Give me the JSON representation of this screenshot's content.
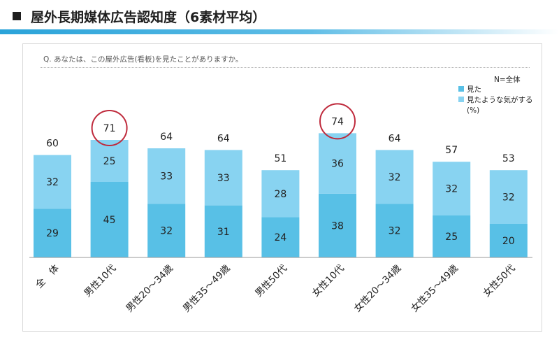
{
  "title": "屋外長期媒体広告認知度（6素材平均）",
  "question": "Q.  あなたは、この屋外広告(看板)を見たことがありますか。",
  "colors": {
    "saw": "#58c0e6",
    "felt_saw": "#88d3f1",
    "highlight_circle": "#bf2a3c",
    "baseline": "#9a9a9a"
  },
  "chart_data": {
    "type": "bar",
    "stacked": true,
    "sample_note": "N=全体",
    "unit_note": "(%)",
    "legend_position": "top-right",
    "categories": [
      "全　体",
      "男性10代",
      "男性20～34歳",
      "男性35～49歳",
      "男性50代",
      "女性10代",
      "女性20～34歳",
      "女性35～49歳",
      "女性50代"
    ],
    "series": [
      {
        "name": "見た",
        "values": [
          29,
          45,
          32,
          31,
          24,
          38,
          32,
          25,
          20
        ]
      },
      {
        "name": "見たような気がする",
        "values": [
          32,
          25,
          33,
          33,
          28,
          36,
          32,
          32,
          32
        ]
      }
    ],
    "totals": [
      60,
      71,
      64,
      64,
      51,
      74,
      64,
      57,
      53
    ],
    "highlighted_categories": [
      "男性10代",
      "女性10代"
    ],
    "ylim": [
      0,
      85
    ],
    "grid": false
  }
}
